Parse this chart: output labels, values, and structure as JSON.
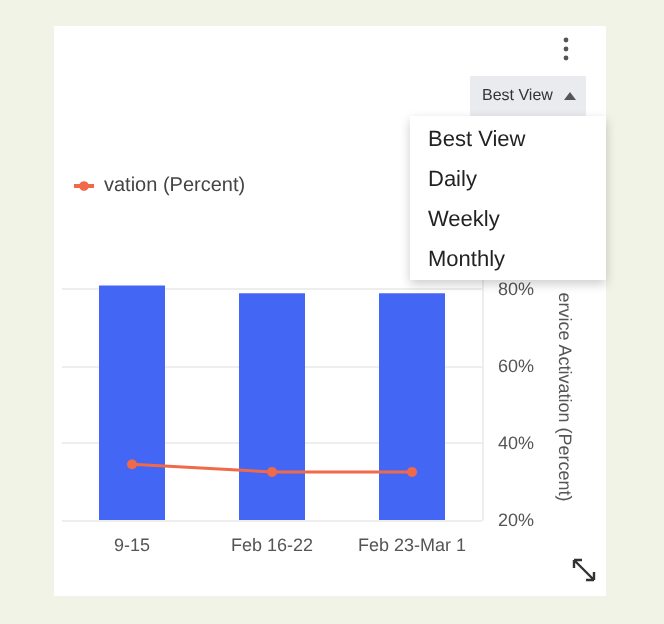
{
  "chart_data": {
    "type": "bar",
    "categories": [
      "9-15",
      "Feb 16-22",
      "Feb 23-Mar 1"
    ],
    "series": [
      {
        "color": "#4466f5",
        "values": [
          81,
          79,
          79
        ],
        "axis": "y2"
      },
      {
        "type": "line",
        "name": "vation (Percent)",
        "color": "#f06a4a",
        "values": [
          34.5,
          32.5,
          32.5
        ],
        "axis": "y2"
      }
    ],
    "y2label": "ervice Activation (Percent)",
    "y2lim": [
      20,
      84
    ],
    "y2ticks": [
      {
        "value": 20,
        "label": "20%"
      },
      {
        "value": 40,
        "label": "40%"
      },
      {
        "value": 60,
        "label": "60%"
      },
      {
        "value": 80,
        "label": "80%"
      }
    ],
    "grid": "y",
    "legend": "top left",
    "marker": "circle",
    "annotations": [
      "Best View",
      "Best View",
      "Daily",
      "Weekly",
      "Monthly"
    ]
  }
}
